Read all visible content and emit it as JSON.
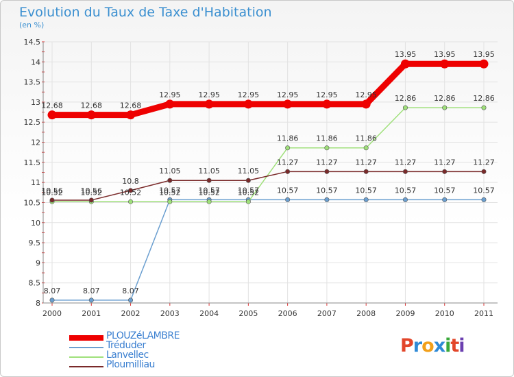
{
  "title": "Evolution du Taux de Taxe d'Habitation",
  "unit_label": "(en %)",
  "logo": {
    "letters": [
      "P",
      "r",
      "o",
      "x",
      "i",
      "t",
      "i"
    ],
    "colors": [
      "#e2462a",
      "#2f8ad6",
      "#f2a01b",
      "#2f8ad6",
      "#3aa83a",
      "#e2462a",
      "#6b3fb0"
    ]
  },
  "chart_data": {
    "type": "line",
    "title": "Evolution du Taux de Taxe d'Habitation",
    "ylabel": "(en %)",
    "x": [
      "2000",
      "2001",
      "2002",
      "2003",
      "2004",
      "2005",
      "2006",
      "2007",
      "2008",
      "2009",
      "2010",
      "2011"
    ],
    "ylim": [
      8,
      14.5
    ],
    "yticks": [
      "8",
      "8.5",
      "9",
      "9.5",
      "10",
      "10.5",
      "11",
      "11.5",
      "12",
      "12.5",
      "13",
      "13.5",
      "14",
      "14.5"
    ],
    "grid": true,
    "legend_position": "bottom-left",
    "series": [
      {
        "name": "PLOUZéLAMBRE",
        "color": "#ee0000",
        "values": [
          12.68,
          12.68,
          12.68,
          12.95,
          12.95,
          12.95,
          12.95,
          12.95,
          12.95,
          13.95,
          13.95,
          13.95
        ],
        "labels": [
          "12.68",
          "12.68",
          "12.68",
          "12.95",
          "12.95",
          "12.95",
          "12.95",
          "12.95",
          "12.95",
          "13.95",
          "13.95",
          "13.95"
        ]
      },
      {
        "name": "Tréduder",
        "color": "#6b9fd0",
        "values": [
          8.07,
          8.07,
          8.07,
          10.57,
          10.57,
          10.57,
          10.57,
          10.57,
          10.57,
          10.57,
          10.57,
          10.57
        ],
        "labels": [
          "8.07",
          "8.07",
          "8.07",
          "10.57",
          "10.57",
          "10.57",
          "10.57",
          "10.57",
          "10.57",
          "10.57",
          "10.57",
          "10.57"
        ]
      },
      {
        "name": "Lanvellec",
        "color": "#9fe07a",
        "values": [
          10.52,
          10.52,
          10.52,
          10.52,
          10.52,
          10.52,
          11.86,
          11.86,
          11.86,
          12.86,
          12.86,
          12.86
        ],
        "labels": [
          "10.52",
          "10.52",
          "10.52",
          "10.52",
          "10.52",
          "10.52",
          "11.86",
          "11.86",
          "11.86",
          "12.86",
          "12.86",
          "12.86"
        ]
      },
      {
        "name": "Ploumilliau",
        "color": "#7a2a2a",
        "values": [
          10.56,
          10.56,
          10.8,
          11.05,
          11.05,
          11.05,
          11.27,
          11.27,
          11.27,
          11.27,
          11.27,
          11.27
        ],
        "labels": [
          "10.56",
          "10.56",
          "10.8",
          "11.05",
          "11.05",
          "11.05",
          "11.27",
          "11.27",
          "11.27",
          "11.27",
          "11.27",
          "11.27"
        ]
      }
    ]
  }
}
